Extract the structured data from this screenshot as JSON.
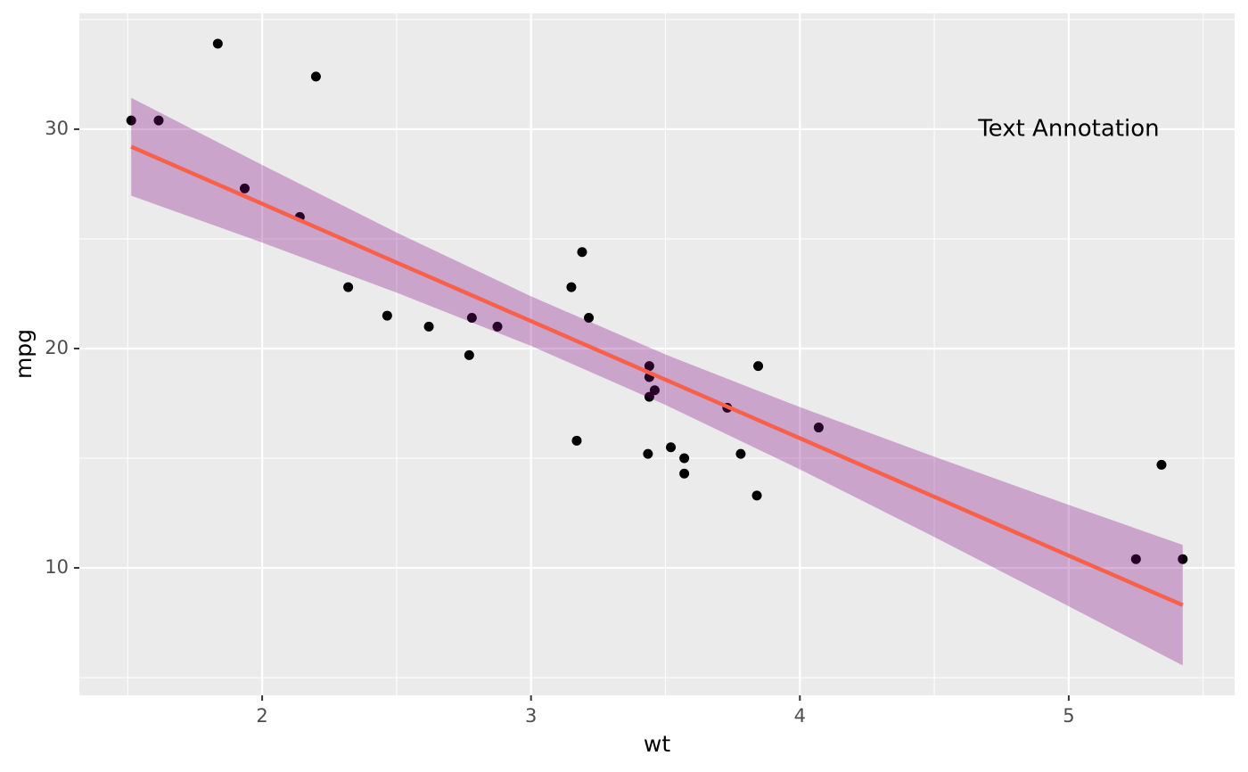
{
  "chart_data": {
    "type": "scatter",
    "x_label": "wt",
    "y_label": "mpg",
    "x": [
      2.62,
      2.875,
      2.32,
      3.215,
      3.44,
      3.46,
      3.57,
      3.19,
      3.15,
      3.44,
      3.44,
      4.07,
      3.73,
      3.78,
      5.25,
      5.424,
      5.345,
      2.2,
      1.615,
      1.835,
      2.465,
      3.52,
      3.435,
      3.84,
      3.845,
      1.935,
      2.14,
      1.513,
      3.17,
      2.77,
      3.57,
      2.78
    ],
    "values": [
      21.0,
      21.0,
      22.8,
      21.4,
      18.7,
      18.1,
      14.3,
      24.4,
      22.8,
      19.2,
      17.8,
      16.4,
      17.3,
      15.2,
      10.4,
      10.4,
      14.7,
      32.4,
      30.4,
      33.9,
      21.5,
      15.5,
      15.2,
      13.3,
      19.2,
      27.3,
      26.0,
      30.4,
      15.8,
      19.7,
      15.0,
      21.4
    ],
    "color": "#000000",
    "fit": {
      "x": [
        1.513,
        2.0,
        2.5,
        3.0,
        3.5,
        4.0,
        4.5,
        5.0,
        5.424
      ],
      "values": [
        29.2,
        26.6,
        23.92,
        21.25,
        18.58,
        15.91,
        13.24,
        10.56,
        8.3
      ],
      "lower": [
        26.97,
        24.83,
        22.55,
        20.12,
        17.43,
        14.49,
        11.41,
        8.25,
        5.55
      ],
      "upper": [
        31.43,
        28.37,
        25.29,
        22.38,
        19.73,
        17.33,
        15.07,
        12.87,
        11.05
      ],
      "color": "#f8604a",
      "band_color": "#800080",
      "band_opacity": 0.3
    },
    "annotation": {
      "text": "Text Annotation",
      "x": 5.0,
      "y": 30
    },
    "xlim": [
      1.32,
      5.617
    ],
    "ylim": [
      4.19,
      35.28
    ],
    "xticks": [
      2,
      3,
      4,
      5
    ],
    "yticks": [
      10,
      20,
      30
    ],
    "xminor": [
      1.5,
      2.5,
      3.5,
      4.5,
      5.5
    ],
    "yminor": [
      5,
      15,
      25,
      35
    ],
    "grid": true
  }
}
